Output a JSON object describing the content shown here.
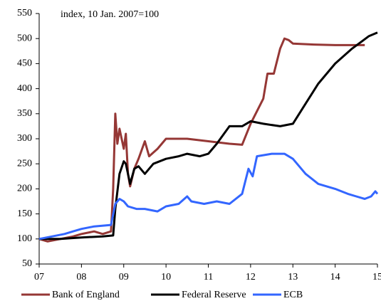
{
  "chart_data": {
    "type": "line",
    "annotation": "index, 10 Jan. 2007=100",
    "xlim": [
      2007,
      2015
    ],
    "xticks": [
      {
        "value": 2007,
        "label": "07"
      },
      {
        "value": 2008,
        "label": "08"
      },
      {
        "value": 2009,
        "label": "09"
      },
      {
        "value": 2010,
        "label": "10"
      },
      {
        "value": 2011,
        "label": "11"
      },
      {
        "value": 2012,
        "label": "12"
      },
      {
        "value": 2013,
        "label": "13"
      },
      {
        "value": 2014,
        "label": "14"
      },
      {
        "value": 2015,
        "label": "15"
      }
    ],
    "ylim": [
      50,
      550
    ],
    "yticks": [
      50,
      100,
      150,
      200,
      250,
      300,
      350,
      400,
      450,
      500,
      550
    ],
    "legend": "bottom",
    "series": [
      {
        "name": "Bank of England",
        "color": "#953735",
        "x": [
          2007.0,
          2007.2,
          2007.5,
          2007.8,
          2008.0,
          2008.3,
          2008.5,
          2008.7,
          2008.75,
          2008.8,
          2008.85,
          2008.9,
          2009.0,
          2009.05,
          2009.1,
          2009.15,
          2009.25,
          2009.35,
          2009.5,
          2009.6,
          2009.8,
          2010.0,
          2010.5,
          2011.0,
          2011.5,
          2011.8,
          2012.0,
          2012.3,
          2012.4,
          2012.55,
          2012.7,
          2012.8,
          2012.9,
          2013.0,
          2013.5,
          2014.0,
          2014.7
        ],
        "values": [
          100,
          95,
          100,
          105,
          110,
          115,
          110,
          115,
          200,
          350,
          290,
          320,
          280,
          310,
          230,
          205,
          240,
          260,
          295,
          265,
          280,
          300,
          300,
          295,
          290,
          288,
          330,
          380,
          430,
          430,
          480,
          500,
          497,
          490,
          488,
          487,
          487
        ]
      },
      {
        "name": "Federal Reserve",
        "color": "#000000",
        "x": [
          2007.0,
          2007.5,
          2008.0,
          2008.5,
          2008.75,
          2008.8,
          2008.9,
          2009.0,
          2009.05,
          2009.15,
          2009.25,
          2009.35,
          2009.5,
          2009.7,
          2010.0,
          2010.3,
          2010.5,
          2010.8,
          2011.0,
          2011.2,
          2011.5,
          2011.8,
          2012.0,
          2012.3,
          2012.7,
          2013.0,
          2013.3,
          2013.6,
          2014.0,
          2014.4,
          2014.8,
          2015.0
        ],
        "values": [
          100,
          100,
          103,
          105,
          107,
          160,
          230,
          255,
          250,
          210,
          240,
          245,
          230,
          250,
          260,
          265,
          270,
          265,
          270,
          290,
          325,
          325,
          335,
          330,
          325,
          330,
          370,
          410,
          450,
          480,
          505,
          512
        ]
      },
      {
        "name": "ECB",
        "color": "#3366ff",
        "x": [
          2007.0,
          2007.3,
          2007.6,
          2007.8,
          2008.0,
          2008.3,
          2008.7,
          2008.8,
          2008.9,
          2009.0,
          2009.1,
          2009.3,
          2009.5,
          2009.8,
          2010.0,
          2010.3,
          2010.5,
          2010.6,
          2010.9,
          2011.2,
          2011.5,
          2011.8,
          2011.95,
          2012.05,
          2012.15,
          2012.5,
          2012.8,
          2013.0,
          2013.3,
          2013.6,
          2014.0,
          2014.3,
          2014.5,
          2014.7,
          2014.85,
          2014.95,
          2015.0
        ],
        "values": [
          100,
          105,
          110,
          115,
          120,
          125,
          128,
          170,
          180,
          175,
          165,
          160,
          160,
          155,
          165,
          170,
          185,
          175,
          170,
          175,
          170,
          190,
          240,
          225,
          265,
          270,
          270,
          260,
          230,
          210,
          200,
          190,
          185,
          180,
          185,
          195,
          190
        ]
      }
    ]
  }
}
